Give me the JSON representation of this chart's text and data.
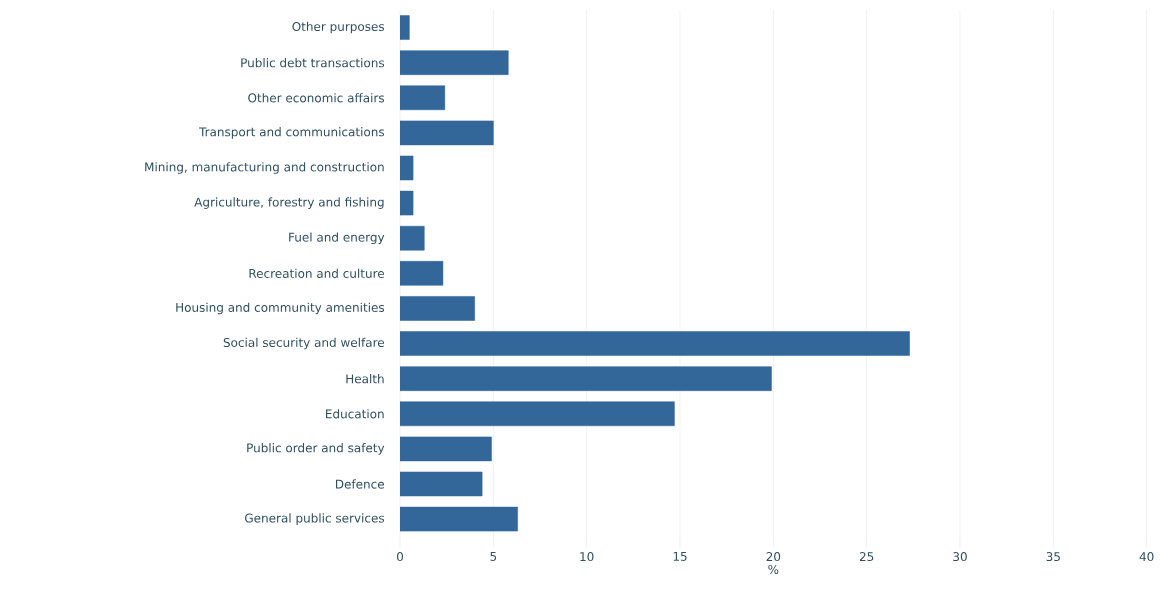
{
  "chart_data": {
    "type": "bar",
    "orientation": "horizontal",
    "categories": [
      "Other purposes",
      "Public debt transactions",
      "Other economic affairs",
      "Transport and communications",
      "Mining, manufacturing and construction",
      "Agriculture, forestry and fishing",
      "Fuel and energy",
      "Recreation and culture",
      "Housing and community amenities",
      "Social security and welfare",
      "Health",
      "Education",
      "Public order and safety",
      "Defence",
      "General public services"
    ],
    "values": [
      0.5,
      5.8,
      2.4,
      5.0,
      0.7,
      0.7,
      1.3,
      2.3,
      4.0,
      27.3,
      19.9,
      14.7,
      4.9,
      4.4,
      6.3
    ],
    "color": "#336699",
    "xlabel": "%",
    "xlim": [
      0,
      40
    ],
    "xticks": [
      0,
      5,
      10,
      15,
      20,
      25,
      30,
      35,
      40
    ],
    "grid": "x"
  }
}
